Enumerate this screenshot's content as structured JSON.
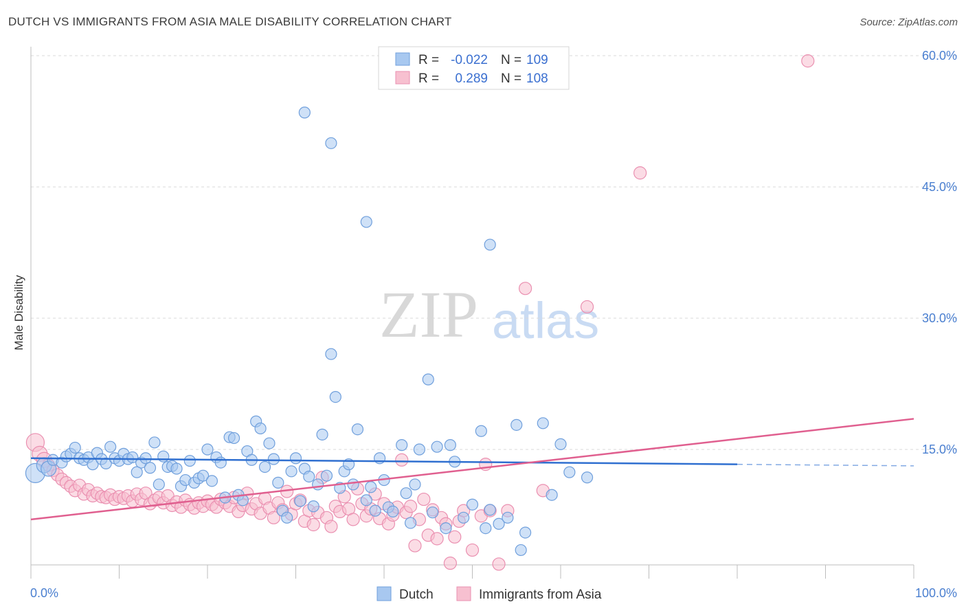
{
  "title": "DUTCH VS IMMIGRANTS FROM ASIA MALE DISABILITY CORRELATION CHART",
  "source": "Source: ZipAtlas.com",
  "watermark": {
    "zip": "ZIP",
    "atlas": "atlas"
  },
  "colors": {
    "dutch_fill": "#a8c8f0",
    "dutch_stroke": "#6f9fdc",
    "dutch_line": "#2f6fd0",
    "asia_fill": "#f7c0d0",
    "asia_stroke": "#ea8fb0",
    "asia_line": "#e05f8f",
    "tick_label": "#4a7fd0",
    "grid": "#d9d9d9"
  },
  "legend": {
    "rows": [
      {
        "r_label": "R =",
        "r_value": "-0.022",
        "n_label": "N =",
        "n_value": "109"
      },
      {
        "r_label": "R =",
        "r_value": "0.289",
        "n_label": "N =",
        "n_value": "108"
      }
    ]
  },
  "bottom_legend": [
    "Dutch",
    "Immigrants from Asia"
  ],
  "chart_data": {
    "type": "scatter",
    "title": "DUTCH VS IMMIGRANTS FROM ASIA MALE DISABILITY CORRELATION CHART",
    "xlabel": "",
    "ylabel": "Male Disability",
    "xlim": [
      0,
      100
    ],
    "ylim": [
      0,
      60
    ],
    "x_tick_labels": [
      "0.0%",
      "100.0%"
    ],
    "y_ticks": [
      15,
      30,
      45,
      60
    ],
    "y_tick_labels": [
      "15.0%",
      "30.0%",
      "45.0%",
      "60.0%"
    ],
    "grid": true,
    "legend_position": "top-center",
    "series": [
      {
        "name": "Dutch",
        "trend": {
          "x": [
            0,
            80
          ],
          "y": [
            14.0,
            13.3
          ],
          "dashed_to_x": 100
        },
        "points": [
          [
            0.5,
            12.3
          ],
          [
            1.5,
            13.2
          ],
          [
            2,
            12.8
          ],
          [
            2.5,
            13.8
          ],
          [
            3.5,
            13.5
          ],
          [
            4,
            14.2
          ],
          [
            4.5,
            14.5
          ],
          [
            5,
            15.2
          ],
          [
            5.5,
            14.0
          ],
          [
            6,
            13.8
          ],
          [
            6.5,
            14.1
          ],
          [
            7,
            13.3
          ],
          [
            7.5,
            14.6
          ],
          [
            8,
            13.9
          ],
          [
            8.5,
            13.4
          ],
          [
            9,
            15.3
          ],
          [
            9.5,
            14.0
          ],
          [
            10,
            13.7
          ],
          [
            10.5,
            14.5
          ],
          [
            11,
            13.9
          ],
          [
            11.5,
            14.1
          ],
          [
            12,
            12.4
          ],
          [
            12.5,
            13.5
          ],
          [
            13,
            14.0
          ],
          [
            13.5,
            12.9
          ],
          [
            14,
            15.8
          ],
          [
            14.5,
            11.0
          ],
          [
            15,
            14.2
          ],
          [
            15.5,
            13.0
          ],
          [
            16,
            13.1
          ],
          [
            16.5,
            12.8
          ],
          [
            17,
            10.8
          ],
          [
            17.5,
            11.5
          ],
          [
            18,
            13.7
          ],
          [
            18.5,
            11.2
          ],
          [
            19,
            11.7
          ],
          [
            19.5,
            12.0
          ],
          [
            20,
            15.0
          ],
          [
            20.5,
            11.4
          ],
          [
            21,
            14.1
          ],
          [
            21.5,
            13.5
          ],
          [
            22,
            9.5
          ],
          [
            22.5,
            16.4
          ],
          [
            23,
            16.3
          ],
          [
            23.5,
            9.8
          ],
          [
            24,
            9.2
          ],
          [
            24.5,
            14.8
          ],
          [
            25,
            13.8
          ],
          [
            25.5,
            18.2
          ],
          [
            26,
            17.4
          ],
          [
            26.5,
            13.0
          ],
          [
            27,
            15.7
          ],
          [
            27.5,
            13.9
          ],
          [
            28,
            11.2
          ],
          [
            28.5,
            8.0
          ],
          [
            29,
            7.2
          ],
          [
            29.5,
            12.5
          ],
          [
            30,
            14.0
          ],
          [
            30.5,
            9.1
          ],
          [
            31,
            12.8
          ],
          [
            31.5,
            11.9
          ],
          [
            32,
            8.5
          ],
          [
            32.5,
            11.0
          ],
          [
            33,
            16.7
          ],
          [
            33.5,
            12.0
          ],
          [
            34,
            25.9
          ],
          [
            34.5,
            21.0
          ],
          [
            35,
            10.6
          ],
          [
            35.5,
            12.5
          ],
          [
            36,
            13.3
          ],
          [
            36.5,
            11.0
          ],
          [
            37,
            17.3
          ],
          [
            38,
            9.2
          ],
          [
            38.5,
            10.7
          ],
          [
            39,
            8.0
          ],
          [
            39.5,
            14.0
          ],
          [
            40,
            11.5
          ],
          [
            40.5,
            8.4
          ],
          [
            41,
            7.9
          ],
          [
            42,
            15.5
          ],
          [
            42.5,
            10.0
          ],
          [
            43,
            6.6
          ],
          [
            43.5,
            11.0
          ],
          [
            44,
            15.0
          ],
          [
            45,
            23.0
          ],
          [
            45.5,
            7.8
          ],
          [
            46,
            15.3
          ],
          [
            47,
            6.0
          ],
          [
            47.5,
            15.5
          ],
          [
            48,
            13.6
          ],
          [
            49,
            7.2
          ],
          [
            50,
            8.7
          ],
          [
            51,
            17.1
          ],
          [
            51.5,
            6.0
          ],
          [
            52,
            8.1
          ],
          [
            53,
            6.5
          ],
          [
            54,
            7.2
          ],
          [
            55,
            17.8
          ],
          [
            55.5,
            3.5
          ],
          [
            56,
            5.5
          ],
          [
            58,
            18.0
          ],
          [
            59,
            9.8
          ],
          [
            60,
            15.6
          ],
          [
            61,
            12.4
          ],
          [
            63,
            11.8
          ],
          [
            31,
            53.5
          ],
          [
            34,
            50.0
          ],
          [
            38,
            41.0
          ],
          [
            52,
            38.4
          ]
        ]
      },
      {
        "name": "Immigrants from Asia",
        "trend": {
          "x": [
            0,
            100
          ],
          "y": [
            7.0,
            18.5
          ]
        },
        "points": [
          [
            0.5,
            15.8
          ],
          [
            1,
            14.5
          ],
          [
            1.5,
            13.8
          ],
          [
            2,
            13.2
          ],
          [
            2.5,
            12.6
          ],
          [
            3,
            12.1
          ],
          [
            3.5,
            11.6
          ],
          [
            4,
            11.2
          ],
          [
            4.5,
            10.8
          ],
          [
            5,
            10.3
          ],
          [
            5.5,
            10.9
          ],
          [
            6,
            9.9
          ],
          [
            6.5,
            10.4
          ],
          [
            7,
            9.7
          ],
          [
            7.5,
            10.0
          ],
          [
            8,
            9.6
          ],
          [
            8.5,
            9.5
          ],
          [
            9,
            9.8
          ],
          [
            9.5,
            9.3
          ],
          [
            10,
            9.6
          ],
          [
            10.5,
            9.4
          ],
          [
            11,
            9.7
          ],
          [
            11.5,
            9.1
          ],
          [
            12,
            9.9
          ],
          [
            12.5,
            9.3
          ],
          [
            13,
            10.0
          ],
          [
            13.5,
            8.8
          ],
          [
            14,
            9.2
          ],
          [
            14.5,
            9.5
          ],
          [
            15,
            8.9
          ],
          [
            15.5,
            9.7
          ],
          [
            16,
            8.6
          ],
          [
            16.5,
            9.0
          ],
          [
            17,
            8.4
          ],
          [
            17.5,
            9.2
          ],
          [
            18,
            8.7
          ],
          [
            18.5,
            8.3
          ],
          [
            19,
            8.9
          ],
          [
            19.5,
            8.5
          ],
          [
            20,
            9.1
          ],
          [
            20.5,
            8.7
          ],
          [
            21,
            8.4
          ],
          [
            21.5,
            9.3
          ],
          [
            22,
            8.9
          ],
          [
            22.5,
            8.5
          ],
          [
            23,
            9.5
          ],
          [
            23.5,
            7.9
          ],
          [
            24,
            8.6
          ],
          [
            24.5,
            10.0
          ],
          [
            25,
            8.2
          ],
          [
            25.5,
            8.8
          ],
          [
            26,
            7.7
          ],
          [
            26.5,
            9.4
          ],
          [
            27,
            8.3
          ],
          [
            27.5,
            7.2
          ],
          [
            28,
            8.9
          ],
          [
            28.5,
            8.1
          ],
          [
            29,
            10.2
          ],
          [
            29.5,
            7.6
          ],
          [
            30,
            8.8
          ],
          [
            30.5,
            9.2
          ],
          [
            31,
            6.8
          ],
          [
            31.5,
            8.0
          ],
          [
            32,
            6.4
          ],
          [
            32.5,
            7.8
          ],
          [
            33,
            11.8
          ],
          [
            33.5,
            7.2
          ],
          [
            34,
            6.2
          ],
          [
            34.5,
            8.5
          ],
          [
            35,
            7.9
          ],
          [
            35.5,
            9.6
          ],
          [
            36,
            8.2
          ],
          [
            36.5,
            7.0
          ],
          [
            37,
            10.5
          ],
          [
            37.5,
            8.8
          ],
          [
            38,
            7.4
          ],
          [
            38.5,
            8.2
          ],
          [
            39,
            9.9
          ],
          [
            39.5,
            7.1
          ],
          [
            40,
            8.8
          ],
          [
            40.5,
            6.5
          ],
          [
            41,
            7.5
          ],
          [
            41.5,
            8.4
          ],
          [
            42,
            13.8
          ],
          [
            42.5,
            7.8
          ],
          [
            43,
            8.5
          ],
          [
            43.5,
            4.0
          ],
          [
            44,
            7.0
          ],
          [
            44.5,
            9.3
          ],
          [
            45,
            5.2
          ],
          [
            45.5,
            8.1
          ],
          [
            46,
            4.8
          ],
          [
            46.5,
            7.2
          ],
          [
            47,
            6.5
          ],
          [
            47.5,
            2.0
          ],
          [
            48,
            5.0
          ],
          [
            48.5,
            6.8
          ],
          [
            49,
            8.0
          ],
          [
            50,
            3.5
          ],
          [
            51,
            7.4
          ],
          [
            51.5,
            13.3
          ],
          [
            52,
            8.0
          ],
          [
            53,
            1.9
          ],
          [
            54,
            8.0
          ],
          [
            58,
            10.3
          ],
          [
            56,
            33.4
          ],
          [
            63,
            31.3
          ],
          [
            69,
            46.6
          ],
          [
            88,
            59.4
          ]
        ]
      }
    ]
  }
}
